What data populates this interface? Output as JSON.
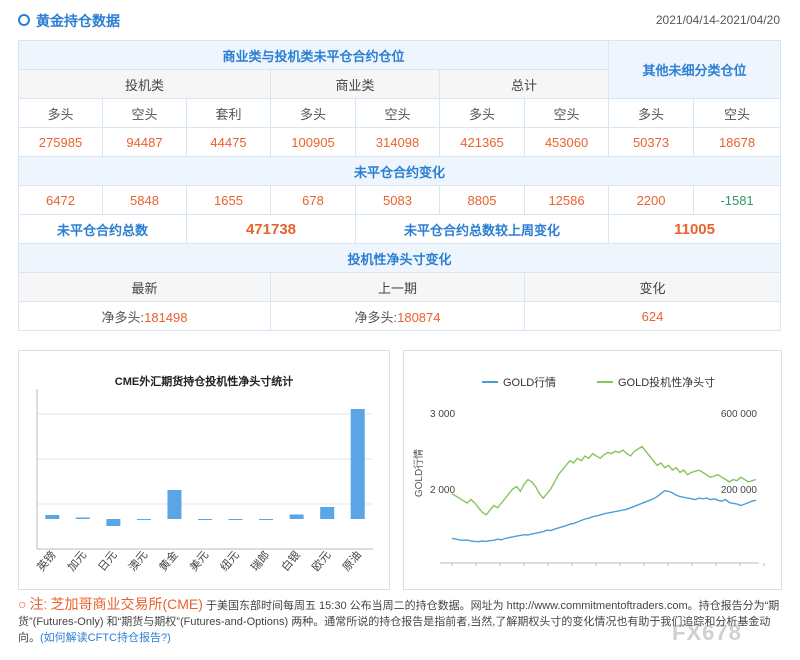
{
  "header": {
    "title": "黄金持仓数据",
    "date_range": "2021/04/14-2021/04/20"
  },
  "table": {
    "group_title": "商业类与投机类未平仓合约仓位",
    "other_title": "其他未细分类仓位",
    "spec_title": "投机类",
    "comm_title": "商业类",
    "total_title": "总计",
    "col_labels": [
      "多头",
      "空头",
      "套利",
      "多头",
      "空头",
      "多头",
      "空头",
      "多头",
      "空头"
    ],
    "positions": [
      "275985",
      "94487",
      "44475",
      "100905",
      "314098",
      "421365",
      "453060",
      "50373",
      "18678"
    ],
    "change_title": "未平仓合约变化",
    "changes": [
      "6472",
      "5848",
      "1655",
      "678",
      "5083",
      "8805",
      "12586",
      "2200",
      "-1581"
    ],
    "oi_total_label": "未平仓合约总数",
    "oi_total_value": "471738",
    "oi_change_label": "未平仓合约总数较上周变化",
    "oi_change_value": "11005",
    "net_title": "投机性净头寸变化",
    "net_col_latest": "最新",
    "net_col_prev": "上一期",
    "net_col_change": "变化",
    "net_latest_label": "净多头:",
    "net_latest_value": "181498",
    "net_prev_label": "净多头:",
    "net_prev_value": "180874",
    "net_change_value": "624"
  },
  "chart_data": [
    {
      "type": "bar",
      "title": "CME外汇期货持仓投机性净头寸统计",
      "categories": [
        "英镑",
        "加元",
        "日元",
        "澳元",
        "黄金",
        "美元",
        "纽元",
        "瑞郎",
        "白银",
        "欧元",
        "原油"
      ],
      "values": [
        8000,
        3000,
        -14000,
        0,
        58000,
        -1000,
        -1000,
        -1000,
        9000,
        24000,
        220000
      ],
      "ylim": [
        -60000,
        260000
      ],
      "colors": {
        "bar": "#5aa5e6"
      }
    },
    {
      "type": "line",
      "legend": "top",
      "ylabel_left": "GOLD行情",
      "left_ticks": [
        "3 000",
        "2 000"
      ],
      "right_ticks": [
        "600 000",
        "200 000"
      ],
      "series": [
        {
          "name": "GOLD行情",
          "color": "#4a9fd8",
          "values": [
            1420,
            1410,
            1400,
            1395,
            1400,
            1385,
            1380,
            1375,
            1385,
            1380,
            1390,
            1395,
            1410,
            1400,
            1420,
            1430,
            1440,
            1450,
            1460,
            1470,
            1465,
            1480,
            1490,
            1500,
            1510,
            1530,
            1525,
            1545,
            1560,
            1575,
            1590,
            1610,
            1620,
            1640,
            1660,
            1680,
            1690,
            1710,
            1720,
            1735,
            1750,
            1760,
            1770,
            1780,
            1790,
            1800,
            1810,
            1830,
            1850,
            1870,
            1890,
            1910,
            1930,
            1950,
            1980,
            2020,
            2060,
            2050,
            2030,
            2000,
            1980,
            1970,
            1960,
            1950,
            1940,
            1960,
            1950,
            1960,
            1940,
            1950,
            1930,
            1920,
            1940,
            1900,
            1890,
            1880,
            1860,
            1880,
            1900,
            1920,
            1930
          ]
        },
        {
          "name": "GOLD投机性净头寸",
          "color": "#86c65a",
          "values": [
            180000,
            170000,
            160000,
            150000,
            140000,
            155000,
            140000,
            120000,
            100000,
            90000,
            110000,
            130000,
            120000,
            140000,
            160000,
            180000,
            200000,
            210000,
            190000,
            220000,
            240000,
            230000,
            210000,
            180000,
            160000,
            180000,
            200000,
            230000,
            260000,
            280000,
            300000,
            320000,
            310000,
            330000,
            320000,
            340000,
            330000,
            350000,
            340000,
            330000,
            345000,
            355000,
            350000,
            360000,
            355000,
            365000,
            350000,
            340000,
            360000,
            370000,
            380000,
            360000,
            340000,
            320000,
            300000,
            310000,
            290000,
            300000,
            280000,
            290000,
            270000,
            280000,
            260000,
            270000,
            275000,
            280000,
            270000,
            260000,
            250000,
            255000,
            260000,
            250000,
            240000,
            230000,
            240000,
            235000,
            250000,
            240000,
            230000,
            235000,
            240000
          ]
        }
      ]
    }
  ],
  "note": {
    "prefix": "注:",
    "org": "芝加哥商业交易所(CME)",
    "text": " 于美国东部时间每周五 15:30 公布当周二的持仓数据。网址为 http://www.commitmentoftraders.com。持仓报告分为“期货”(Futures-Only) 和“期货与期权”(Futures-and-Options) 两种。通常所说的持仓报告是指前者,当然,了解期权头寸的变化情况也有助于我们追踪和分析基金动向。",
    "link": "(如何解读CFTC持仓报告?)"
  },
  "watermark": "FX678"
}
